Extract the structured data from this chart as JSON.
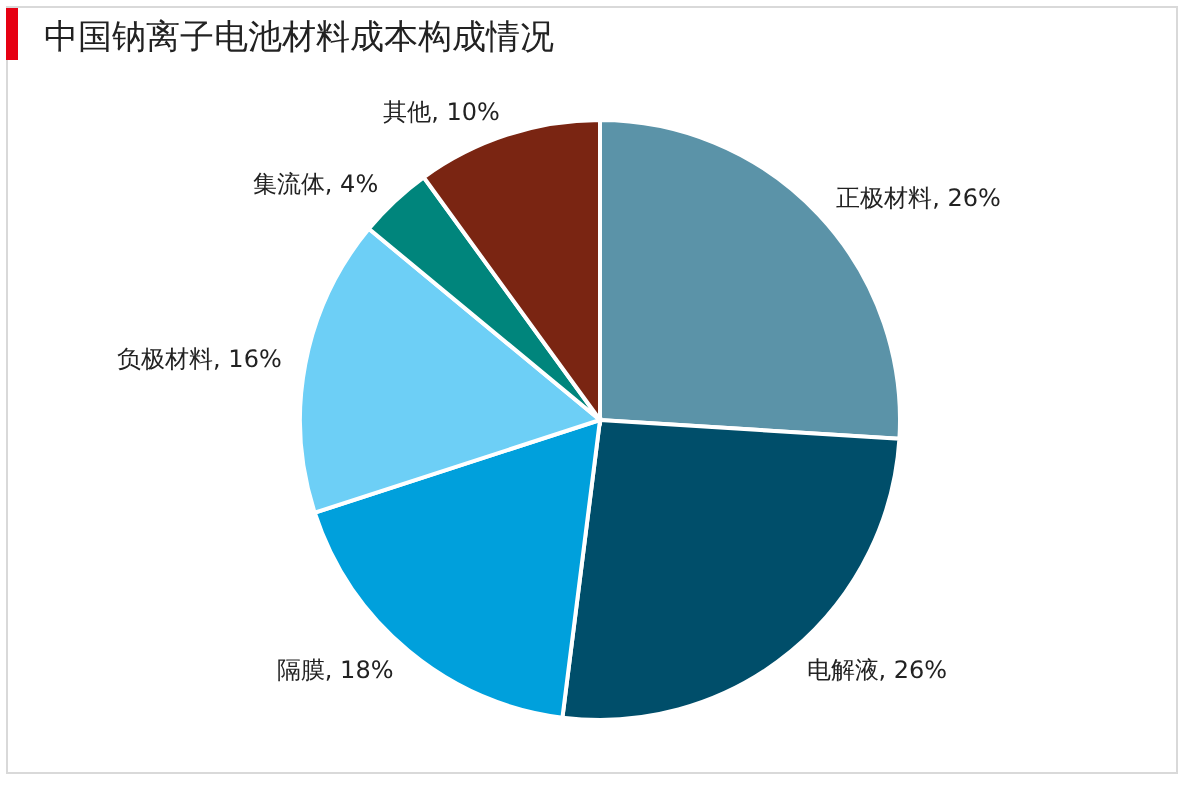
{
  "chart_data": {
    "type": "pie",
    "title": "中国钠离子电池材料成本构成情况",
    "categories": [
      "正极材料",
      "电解液",
      "隔膜",
      "负极材料",
      "集流体",
      "其他"
    ],
    "values": [
      26,
      26,
      18,
      16,
      4,
      10
    ],
    "value_labels": [
      "26%",
      "26%",
      "18%",
      "16%",
      "4%",
      "10%"
    ],
    "colors": [
      "#5b93a8",
      "#004e6a",
      "#00a0dc",
      "#6dcff6",
      "#00857c",
      "#7a2512"
    ]
  }
}
